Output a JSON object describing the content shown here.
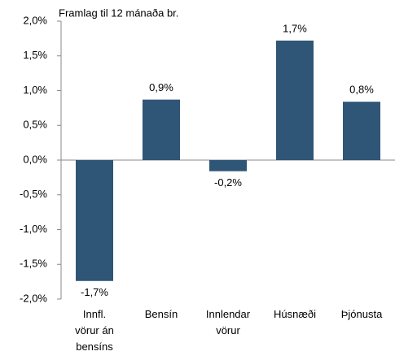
{
  "chart_data": {
    "type": "bar",
    "title": "Framlag til 12 mánaða br.",
    "categories": [
      "Innfl. vörur án bensíns",
      "Bensín",
      "Innlendar vörur",
      "Húsnæði",
      "Þjónusta"
    ],
    "values": [
      -1.74,
      0.87,
      -0.16,
      1.72,
      0.84
    ],
    "value_labels": [
      "-1,7%",
      "0,9%",
      "-0,2%",
      "1,7%",
      "0,8%"
    ],
    "color": "#2f5577",
    "ylim": [
      -2,
      2
    ],
    "yticks": [
      {
        "value": -2,
        "label": "-2,0%"
      },
      {
        "value": -1.5,
        "label": "-1,5%"
      },
      {
        "value": -1,
        "label": "-1,0%"
      },
      {
        "value": -0.5,
        "label": "-0,5%"
      },
      {
        "value": 0,
        "label": "0,0%"
      },
      {
        "value": 0.5,
        "label": "0,5%"
      },
      {
        "value": 1,
        "label": "1,0%"
      },
      {
        "value": 1.5,
        "label": "1,5%"
      },
      {
        "value": 2,
        "label": "2,0%"
      }
    ],
    "grid": false
  }
}
